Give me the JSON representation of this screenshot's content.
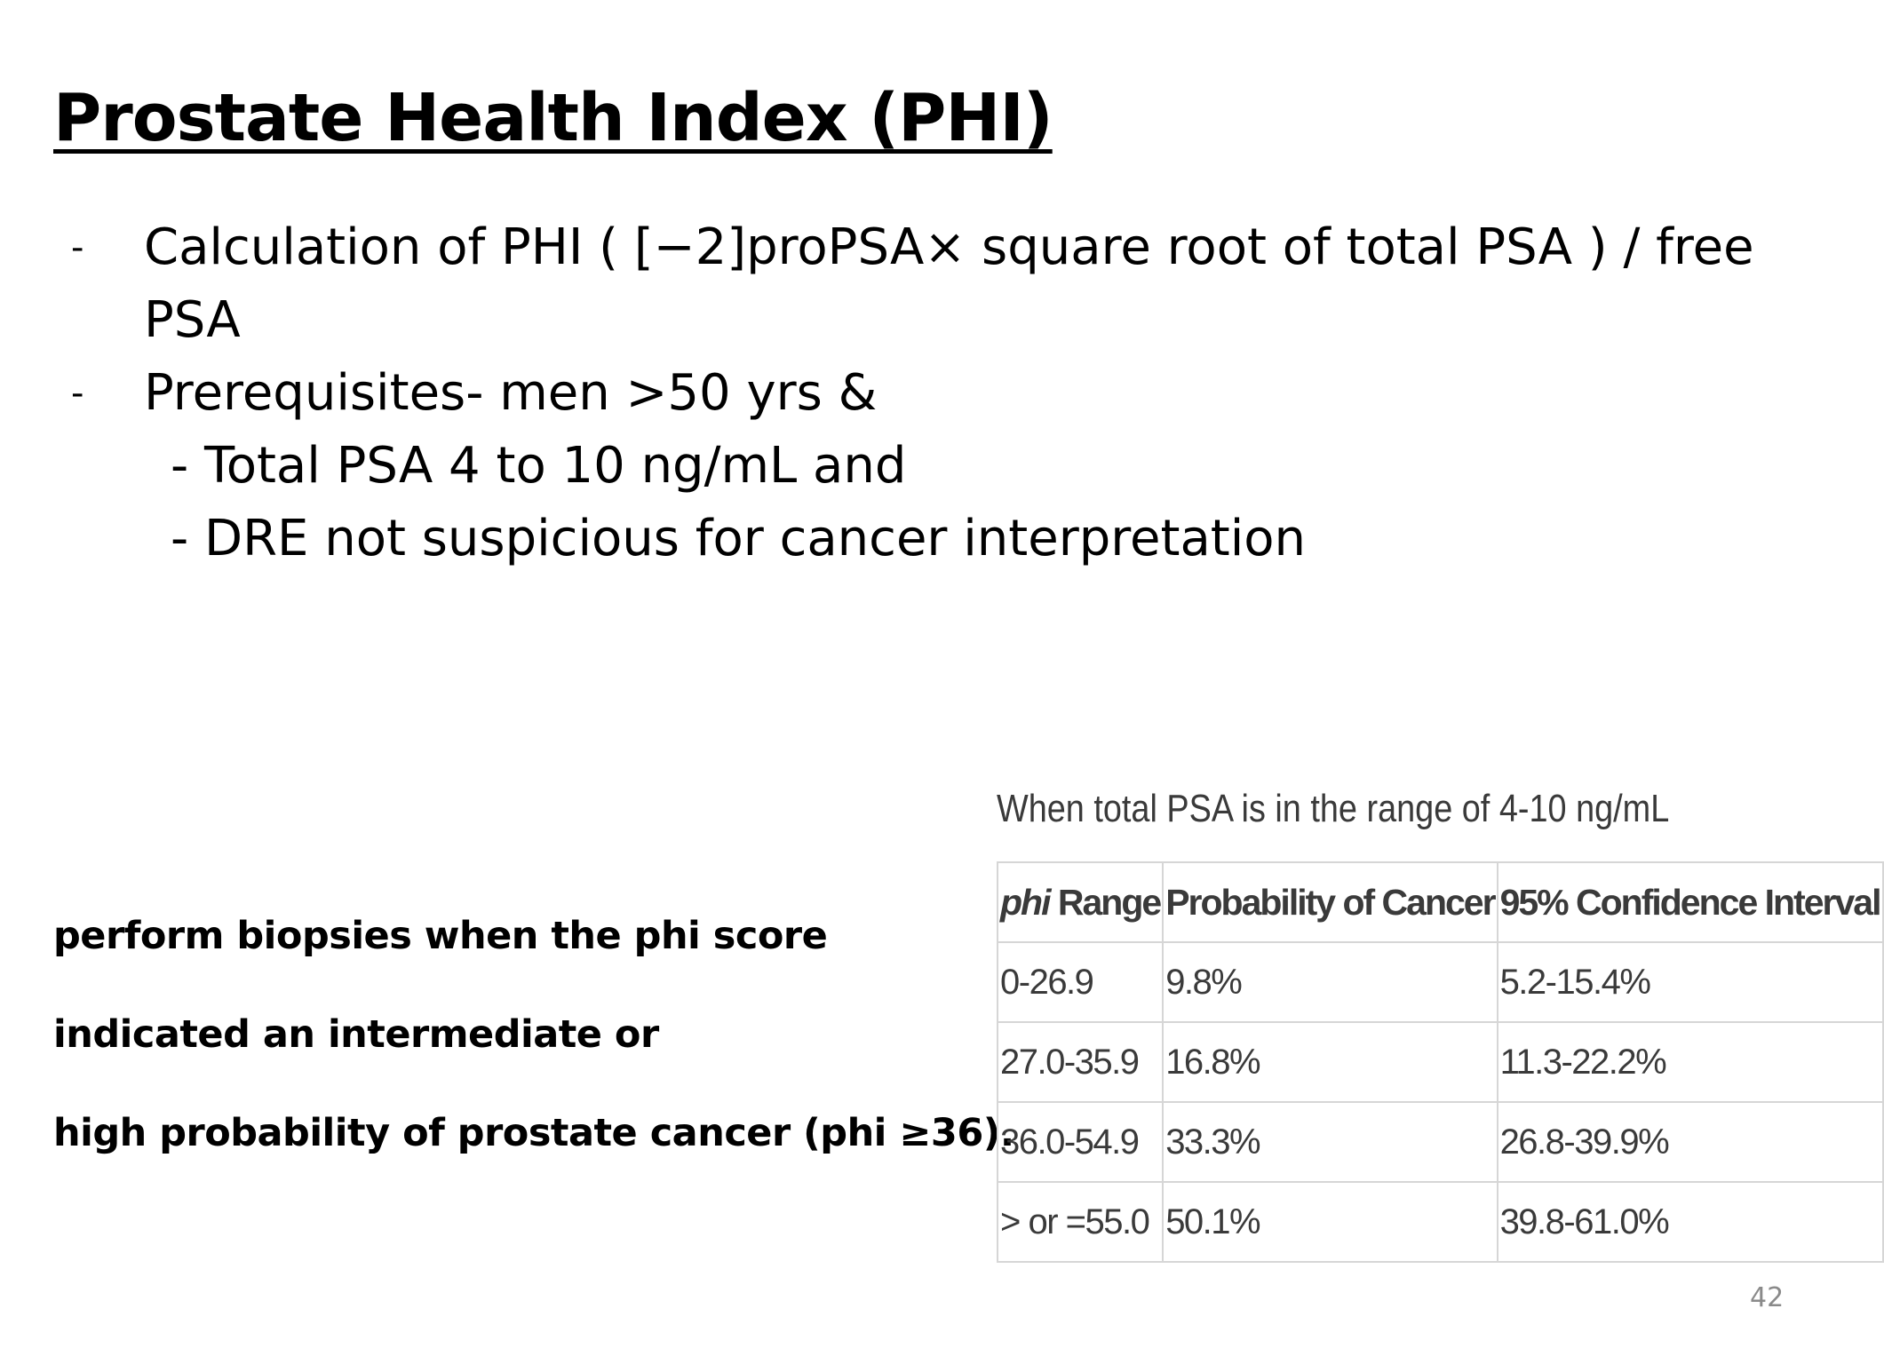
{
  "slide": {
    "title": "Prostate Health Index (PHI)",
    "page_number": "42"
  },
  "bullets": [
    {
      "marker": "-",
      "text": "Calculation of PHI   (  [−2]proPSA× square root of total PSA ) /  free PSA"
    },
    {
      "marker": "-",
      "text": "Prerequisites- men >50 yrs &",
      "sub_items": [
        "- Total PSA 4 to 10 ng/mL and",
        "- DRE not suspicious for cancer interpretation"
      ]
    }
  ],
  "note": {
    "lines": [
      "perform biopsies when the phi score",
      "indicated an intermediate or",
      "high probability of prostate cancer (phi ≥36)."
    ]
  },
  "table": {
    "caption": "When total PSA is in the range of 4-10 ng/mL",
    "headers": {
      "range_italic": "phi",
      "range_rest": " Range",
      "probability": "Probability of Cancer",
      "ci": "95% Confidence Interval"
    },
    "rows": [
      {
        "range": "0-26.9",
        "probability": "9.8%",
        "ci": "5.2-15.4%"
      },
      {
        "range": "27.0-35.9",
        "probability": "16.8%",
        "ci": "11.3-22.2%"
      },
      {
        "range": "36.0-54.9",
        "probability": "33.3%",
        "ci": "26.8-39.9%"
      },
      {
        "range": "> or =55.0",
        "probability": "50.1%",
        "ci": "39.8-61.0%"
      }
    ]
  }
}
